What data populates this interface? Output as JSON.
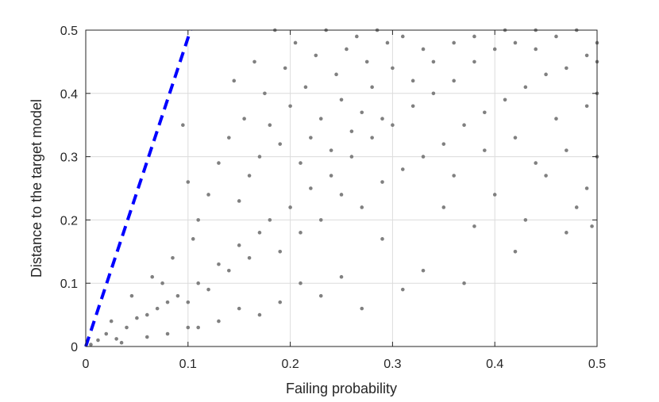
{
  "chart_data": {
    "type": "scatter",
    "xlabel": "Failing probability",
    "ylabel": "Distance to the target model",
    "xlim": [
      0,
      0.5
    ],
    "ylim": [
      0,
      0.5
    ],
    "xticks": [
      "0",
      "0.1",
      "0.2",
      "0.3",
      "0.4",
      "0.5"
    ],
    "yticks": [
      "0",
      "0.1",
      "0.2",
      "0.3",
      "0.4",
      "0.5"
    ],
    "grid": true,
    "colors": {
      "points": "#808080",
      "reference_line": "#0000ff",
      "grid": "#dcdcdc",
      "axes": "#262626"
    },
    "reference_line": {
      "style": "dashed",
      "x": [
        0,
        0.1025
      ],
      "y": [
        0,
        0.5
      ]
    },
    "scatter_samples": [
      [
        0.005,
        0.003
      ],
      [
        0.012,
        0.01
      ],
      [
        0.02,
        0.02
      ],
      [
        0.03,
        0.012
      ],
      [
        0.04,
        0.03
      ],
      [
        0.05,
        0.045
      ],
      [
        0.06,
        0.05
      ],
      [
        0.07,
        0.06
      ],
      [
        0.08,
        0.07
      ],
      [
        0.09,
        0.08
      ],
      [
        0.1,
        0.07
      ],
      [
        0.11,
        0.1
      ],
      [
        0.12,
        0.09
      ],
      [
        0.13,
        0.13
      ],
      [
        0.14,
        0.12
      ],
      [
        0.15,
        0.16
      ],
      [
        0.16,
        0.14
      ],
      [
        0.17,
        0.18
      ],
      [
        0.18,
        0.2
      ],
      [
        0.19,
        0.15
      ],
      [
        0.2,
        0.22
      ],
      [
        0.21,
        0.18
      ],
      [
        0.22,
        0.25
      ],
      [
        0.23,
        0.2
      ],
      [
        0.24,
        0.27
      ],
      [
        0.25,
        0.24
      ],
      [
        0.26,
        0.3
      ],
      [
        0.27,
        0.22
      ],
      [
        0.28,
        0.33
      ],
      [
        0.29,
        0.26
      ],
      [
        0.3,
        0.35
      ],
      [
        0.31,
        0.28
      ],
      [
        0.32,
        0.38
      ],
      [
        0.33,
        0.3
      ],
      [
        0.34,
        0.4
      ],
      [
        0.35,
        0.32
      ],
      [
        0.36,
        0.42
      ],
      [
        0.37,
        0.35
      ],
      [
        0.38,
        0.45
      ],
      [
        0.39,
        0.37
      ],
      [
        0.4,
        0.47
      ],
      [
        0.41,
        0.39
      ],
      [
        0.42,
        0.48
      ],
      [
        0.43,
        0.41
      ],
      [
        0.44,
        0.5
      ],
      [
        0.45,
        0.43
      ],
      [
        0.46,
        0.49
      ],
      [
        0.47,
        0.44
      ],
      [
        0.48,
        0.5
      ],
      [
        0.49,
        0.46
      ],
      [
        0.5,
        0.48
      ],
      [
        0.5,
        0.3
      ],
      [
        0.49,
        0.25
      ],
      [
        0.47,
        0.18
      ],
      [
        0.45,
        0.27
      ],
      [
        0.43,
        0.2
      ],
      [
        0.42,
        0.15
      ],
      [
        0.4,
        0.24
      ],
      [
        0.38,
        0.19
      ],
      [
        0.37,
        0.1
      ],
      [
        0.35,
        0.22
      ],
      [
        0.33,
        0.12
      ],
      [
        0.31,
        0.09
      ],
      [
        0.29,
        0.17
      ],
      [
        0.27,
        0.06
      ],
      [
        0.25,
        0.11
      ],
      [
        0.23,
        0.08
      ],
      [
        0.21,
        0.1
      ],
      [
        0.19,
        0.07
      ],
      [
        0.17,
        0.05
      ],
      [
        0.15,
        0.06
      ],
      [
        0.13,
        0.04
      ],
      [
        0.11,
        0.03
      ],
      [
        0.1,
        0.03
      ],
      [
        0.08,
        0.02
      ],
      [
        0.06,
        0.015
      ],
      [
        0.035,
        0.006
      ],
      [
        0.025,
        0.04
      ],
      [
        0.045,
        0.08
      ],
      [
        0.065,
        0.11
      ],
      [
        0.075,
        0.1
      ],
      [
        0.085,
        0.14
      ],
      [
        0.095,
        0.35
      ],
      [
        0.1,
        0.26
      ],
      [
        0.105,
        0.17
      ],
      [
        0.11,
        0.2
      ],
      [
        0.12,
        0.24
      ],
      [
        0.13,
        0.29
      ],
      [
        0.14,
        0.33
      ],
      [
        0.145,
        0.42
      ],
      [
        0.15,
        0.23
      ],
      [
        0.155,
        0.36
      ],
      [
        0.16,
        0.27
      ],
      [
        0.165,
        0.45
      ],
      [
        0.17,
        0.3
      ],
      [
        0.175,
        0.4
      ],
      [
        0.18,
        0.35
      ],
      [
        0.185,
        0.5
      ],
      [
        0.19,
        0.32
      ],
      [
        0.195,
        0.44
      ],
      [
        0.2,
        0.38
      ],
      [
        0.205,
        0.48
      ],
      [
        0.21,
        0.29
      ],
      [
        0.215,
        0.41
      ],
      [
        0.22,
        0.33
      ],
      [
        0.225,
        0.46
      ],
      [
        0.23,
        0.36
      ],
      [
        0.235,
        0.5
      ],
      [
        0.24,
        0.31
      ],
      [
        0.245,
        0.43
      ],
      [
        0.25,
        0.39
      ],
      [
        0.255,
        0.47
      ],
      [
        0.26,
        0.34
      ],
      [
        0.265,
        0.49
      ],
      [
        0.27,
        0.37
      ],
      [
        0.275,
        0.45
      ],
      [
        0.28,
        0.41
      ],
      [
        0.285,
        0.5
      ],
      [
        0.29,
        0.36
      ],
      [
        0.295,
        0.48
      ],
      [
        0.3,
        0.44
      ],
      [
        0.31,
        0.49
      ],
      [
        0.32,
        0.42
      ],
      [
        0.33,
        0.47
      ],
      [
        0.34,
        0.45
      ],
      [
        0.36,
        0.48
      ],
      [
        0.38,
        0.49
      ],
      [
        0.41,
        0.5
      ],
      [
        0.44,
        0.47
      ],
      [
        0.46,
        0.36
      ],
      [
        0.48,
        0.22
      ],
      [
        0.495,
        0.19
      ],
      [
        0.5,
        0.4
      ],
      [
        0.5,
        0.45
      ],
      [
        0.49,
        0.38
      ],
      [
        0.47,
        0.31
      ],
      [
        0.44,
        0.29
      ],
      [
        0.42,
        0.33
      ],
      [
        0.39,
        0.31
      ],
      [
        0.36,
        0.27
      ]
    ]
  }
}
